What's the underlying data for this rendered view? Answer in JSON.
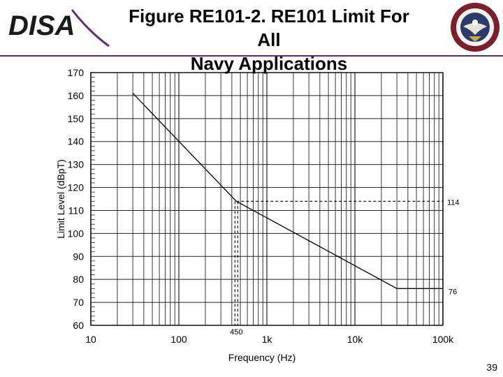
{
  "header": {
    "logo_text": "DISA",
    "title_line1": "Figure RE101-2. RE101 Limit For All",
    "title_line2": "Navy Applications",
    "accent_color": "#5a2d78",
    "seal_icon": "dod-agency-seal-icon"
  },
  "chart_data": {
    "type": "line",
    "title": "",
    "xlabel": "Frequency (Hz)",
    "ylabel": "Limit Level (dBpT)",
    "x_scale": "log",
    "xlim": [
      10,
      100000
    ],
    "ylim": [
      60,
      170
    ],
    "grid": true,
    "x_ticks": [
      {
        "value": 10,
        "label": "10"
      },
      {
        "value": 100,
        "label": "100"
      },
      {
        "value": 1000,
        "label": "1k"
      },
      {
        "value": 10000,
        "label": "10k"
      },
      {
        "value": 100000,
        "label": "100k"
      }
    ],
    "y_ticks": [
      {
        "value": 60,
        "label": "60"
      },
      {
        "value": 70,
        "label": "70"
      },
      {
        "value": 80,
        "label": "80"
      },
      {
        "value": 90,
        "label": "90"
      },
      {
        "value": 100,
        "label": "100"
      },
      {
        "value": 110,
        "label": "110"
      },
      {
        "value": 120,
        "label": "120"
      },
      {
        "value": 130,
        "label": "130"
      },
      {
        "value": 140,
        "label": "140"
      },
      {
        "value": 150,
        "label": "150"
      },
      {
        "value": 160,
        "label": "160"
      },
      {
        "value": 170,
        "label": "170"
      }
    ],
    "series": [
      {
        "x": [
          30,
          450,
          30000,
          100000
        ],
        "y": [
          161,
          114,
          76,
          76
        ]
      }
    ],
    "annotations": [
      {
        "label": "114",
        "x": 100000,
        "y": 114
      },
      {
        "label": "76",
        "x": 100000,
        "y": 76
      },
      {
        "label": "450",
        "x": 450,
        "y": 60
      }
    ],
    "reference_lines": {
      "x": 450,
      "y": 114
    }
  },
  "footer": {
    "page_number": "39"
  }
}
